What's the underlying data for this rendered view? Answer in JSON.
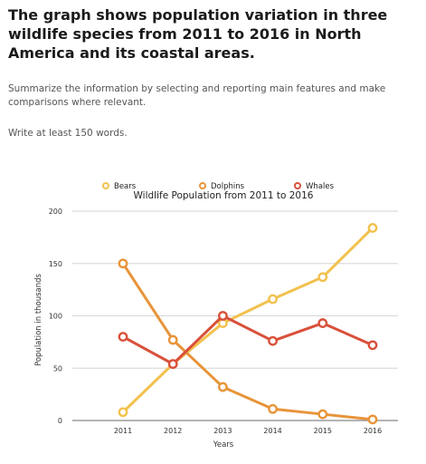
{
  "task": {
    "heading": "The graph shows population variation in three wildlife species from 2011 to 2016 in North America and its coastal areas.",
    "instruction": "Summarize the information by selecting and reporting main features and make comparisons where relevant.",
    "word_count": "Write at least 150 words."
  },
  "chart_data": {
    "type": "line",
    "title": "Wildlife Population from 2011 to 2016",
    "xlabel": "Years",
    "ylabel": "Population in thousands",
    "categories": [
      "2011",
      "2012",
      "2013",
      "2014",
      "2015",
      "2016"
    ],
    "yticks": [
      0,
      50,
      100,
      150,
      200
    ],
    "ylim": [
      0,
      200
    ],
    "grid": true,
    "legend_position": "top",
    "series": [
      {
        "name": "Bears",
        "color": "#f2c14e",
        "values": [
          8,
          54,
          93,
          116,
          137,
          184
        ]
      },
      {
        "name": "Dolphins",
        "color": "#e8943a",
        "values": [
          150,
          77,
          32,
          11,
          6,
          1
        ]
      },
      {
        "name": "Whales",
        "color": "#d9503a",
        "values": [
          80,
          54,
          100,
          76,
          93,
          72
        ]
      }
    ]
  }
}
